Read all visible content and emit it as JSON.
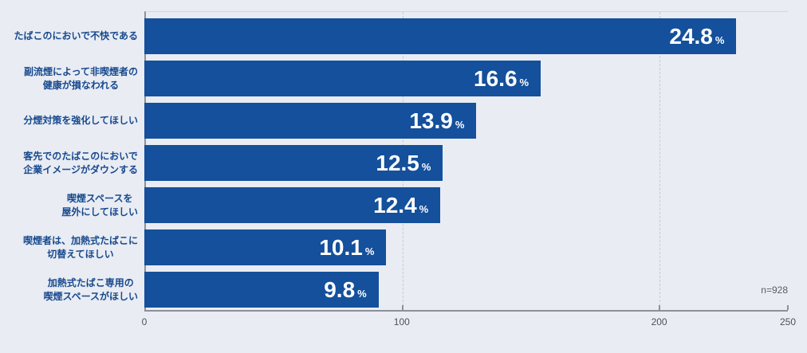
{
  "chart_data": {
    "type": "bar",
    "orientation": "horizontal",
    "title": "",
    "categories": [
      [
        "たばこのにおいで不快である"
      ],
      [
        "副流煙によって非喫煙者の",
        "健康が損なわれる"
      ],
      [
        "分煙対策を強化してほしい"
      ],
      [
        "客先でのたばこのにおいで",
        "企業イメージがダウンする"
      ],
      [
        "喫煙スペースを",
        "屋外にしてほしい"
      ],
      [
        "喫煙者は、加熱式たばこに",
        "切替えてほしい"
      ],
      [
        "加熱式たばこ専用の",
        "喫煙スペースがほしい"
      ]
    ],
    "percent_labels": [
      "24.8",
      "16.6",
      "13.9",
      "12.5",
      "12.4",
      "10.1",
      "9.8"
    ],
    "percent_values": [
      24.8,
      16.6,
      13.9,
      12.5,
      12.4,
      10.1,
      9.8
    ],
    "percent_suffix": "%",
    "counts": [
      230,
      154,
      129,
      116,
      115,
      94,
      91
    ],
    "n_label": "n=928",
    "xlim": [
      0,
      250
    ],
    "x_ticks": [
      0,
      100,
      200,
      250
    ],
    "gridlines_at": [
      100,
      200
    ],
    "legend": "none",
    "colors": {
      "bar": "#14509b",
      "category_label": "#17498e",
      "value_label": "#ffffff",
      "background": "#e9ecf3",
      "axis": "#8b919b",
      "grid": "#c6cad3",
      "tick_label": "#4d525b",
      "n_label": "#575d68"
    }
  }
}
